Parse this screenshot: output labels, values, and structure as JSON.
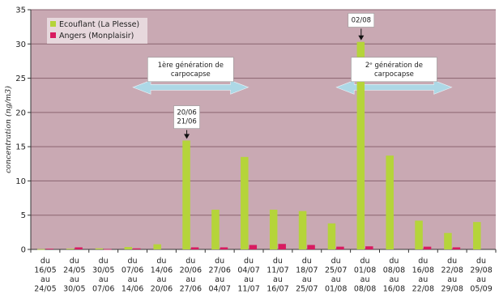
{
  "chart_data": {
    "type": "bar",
    "ylabel": "concentration (ng/m3)",
    "ylim": [
      0,
      35
    ],
    "yticks": [
      0,
      5,
      10,
      15,
      20,
      25,
      30,
      35
    ],
    "grid": true,
    "legend_position": "top-left",
    "categories": [
      [
        "du",
        "16/05",
        "au",
        "24/05"
      ],
      [
        "du",
        "24/05",
        "au",
        "30/05"
      ],
      [
        "du",
        "30/05",
        "au",
        "07/06"
      ],
      [
        "du",
        "07/06",
        "au",
        "14/06"
      ],
      [
        "du",
        "14/06",
        "au",
        "20/06"
      ],
      [
        "du",
        "20/06",
        "au",
        "27/06"
      ],
      [
        "du",
        "27/06",
        "au",
        "04/07"
      ],
      [
        "du",
        "04/07",
        "au",
        "11/07"
      ],
      [
        "du",
        "11/07",
        "au",
        "16/07"
      ],
      [
        "du",
        "18/07",
        "au",
        "25/07"
      ],
      [
        "du",
        "25/07",
        "au",
        "01/08"
      ],
      [
        "du",
        "01/08",
        "au",
        "08/08"
      ],
      [
        "du",
        "08/08",
        "au",
        "16/08"
      ],
      [
        "du",
        "16/08",
        "au",
        "22/08"
      ],
      [
        "du",
        "22/08",
        "au",
        "29/08"
      ],
      [
        "du",
        "29/08",
        "au",
        "05/09"
      ]
    ],
    "series": [
      {
        "name": "Ecouflant (La Plesse)",
        "color": "#b5d43a",
        "values": [
          0.05,
          0.1,
          0.15,
          0.35,
          0.75,
          15.9,
          5.8,
          13.5,
          5.8,
          5.6,
          3.8,
          30.3,
          13.7,
          4.2,
          2.4,
          4.0
        ]
      },
      {
        "name": "Angers (Monplaisir)",
        "color": "#d81b60",
        "values": [
          0.1,
          0.3,
          0.05,
          0.15,
          0.0,
          0.3,
          0.3,
          0.65,
          0.8,
          0.65,
          0.4,
          0.45,
          0.0,
          0.4,
          0.3,
          0.0
        ]
      }
    ],
    "annotations": [
      {
        "lines": [
          "1ère génération de",
          "carpocapse"
        ],
        "category_start": 3,
        "category_end": 7,
        "y": 24.5,
        "kind": "double-arrow-box"
      },
      {
        "lines": [
          "2ᵉ génération de",
          "carpocapse"
        ],
        "category_start": 10,
        "category_end": 14,
        "y": 24.5,
        "kind": "double-arrow-box"
      },
      {
        "lines": [
          "20/06",
          "21/06"
        ],
        "category": 5,
        "y": 20.5,
        "kind": "arrow-label"
      },
      {
        "lines": [
          "02/08"
        ],
        "category": 11,
        "y": 34,
        "kind": "arrow-label"
      }
    ]
  },
  "colors": {
    "plot_bg": "#c9a9b3",
    "grid": "#8a6470",
    "arrow": "#add8e6"
  }
}
